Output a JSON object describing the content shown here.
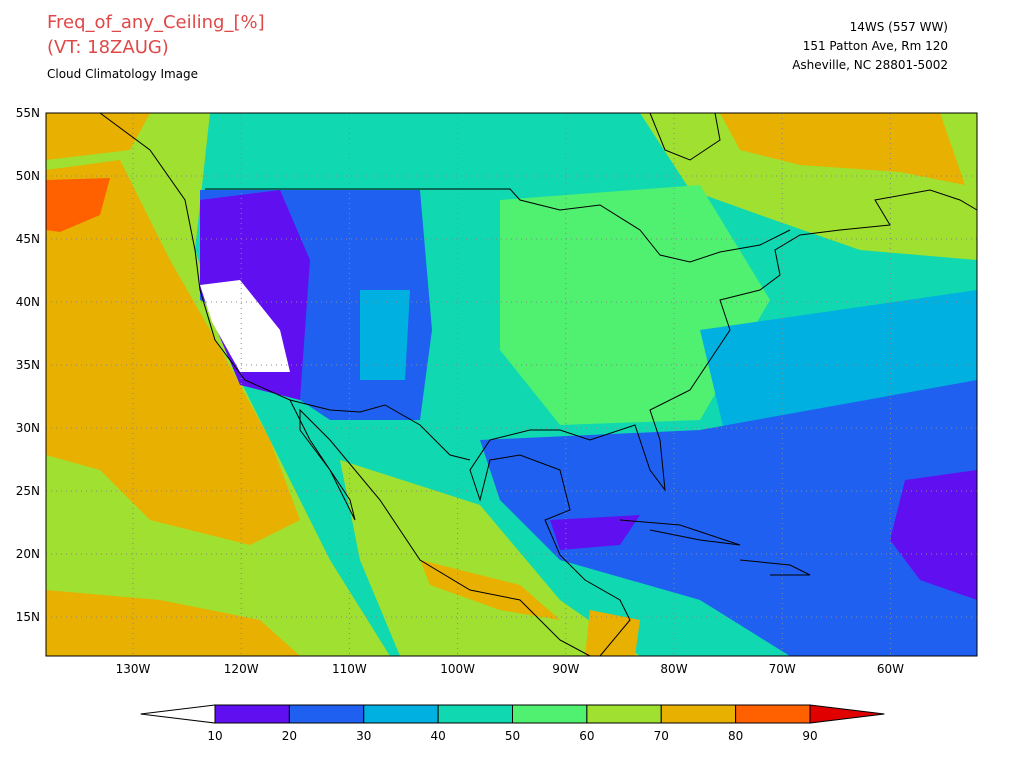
{
  "header": {
    "title": "Freq_of_any_Ceiling_[%]",
    "valid_time": "(VT: 18ZAUG)",
    "subtitle": "Cloud Climatology Image",
    "org": [
      "14WS (557 WW)",
      "151 Patton Ave, Rm 120",
      "Asheville, NC 28801-5002"
    ]
  },
  "map": {
    "lat_labels": [
      "55N",
      "50N",
      "45N",
      "40N",
      "35N",
      "30N",
      "25N",
      "20N",
      "15N"
    ],
    "lon_labels": [
      "130W",
      "120W",
      "110W",
      "100W",
      "90W",
      "80W",
      "70W",
      "60W"
    ]
  },
  "colorbar": {
    "levels": [
      10,
      20,
      30,
      40,
      50,
      60,
      70,
      80,
      90
    ],
    "colors": [
      "#ffffff",
      "#6010f0",
      "#2060f0",
      "#00b0e0",
      "#10d8b0",
      "#50f070",
      "#a0e030",
      "#e8b000",
      "#ff6000",
      "#e00000"
    ]
  }
}
